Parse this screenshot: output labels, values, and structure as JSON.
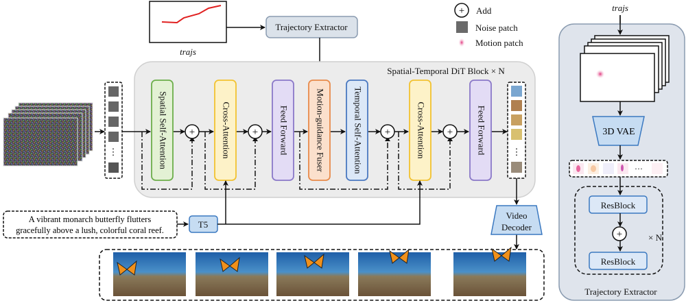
{
  "trajs_input": {
    "label": "trajs"
  },
  "trajectory_extractor_box": {
    "label": "Trajectory Extractor"
  },
  "legend": {
    "add": "Add",
    "noise_patch": "Noise patch",
    "motion_patch": "Motion patch"
  },
  "dit_block": {
    "title": "Spatial-Temporal DiT Block × N",
    "modules": [
      {
        "label": "Spatial Self-Attention",
        "color": "#e3f1d4",
        "border": "#6cae4a"
      },
      {
        "label": "Cross-Attention",
        "color": "#fdf2c8",
        "border": "#f2c230"
      },
      {
        "label": "Feed Forward",
        "color": "#e3dcf5",
        "border": "#8a78c8"
      },
      {
        "label": "Motion-guidance Fuser",
        "color": "#fbe0cc",
        "border": "#e88a4a"
      },
      {
        "label": "Temporal Self-Attention",
        "color": "#dce8f7",
        "border": "#4a78c0"
      },
      {
        "label": "Cross-Attention",
        "color": "#fdf2c8",
        "border": "#f2c230"
      },
      {
        "label": "Feed Forward",
        "color": "#e3dcf5",
        "border": "#8a78c8"
      }
    ]
  },
  "token_column": {
    "ellipsis": "⋮"
  },
  "prompt": {
    "line1": "A vibrant monarch butterfly flutters",
    "line2": "gracefully above a lush, colorful coral reef."
  },
  "t5": {
    "label": "T5"
  },
  "video_decoder": {
    "line1": "Video",
    "line2": "Decoder"
  },
  "right_panel": {
    "trajs_label": "trajs",
    "vae_label": "3D VAE",
    "token_ellipsis": "···",
    "resblock1": "ResBlock",
    "resblock2": "ResBlock",
    "repeat": "× N",
    "title": "Trajectory Extractor"
  },
  "colors": {
    "blue_box": "#c6dcf2",
    "blue_border": "#3a78c0",
    "gray_panel": "#ececec",
    "right_panel": "#dfe4ec",
    "trajectory": "#e02020"
  }
}
